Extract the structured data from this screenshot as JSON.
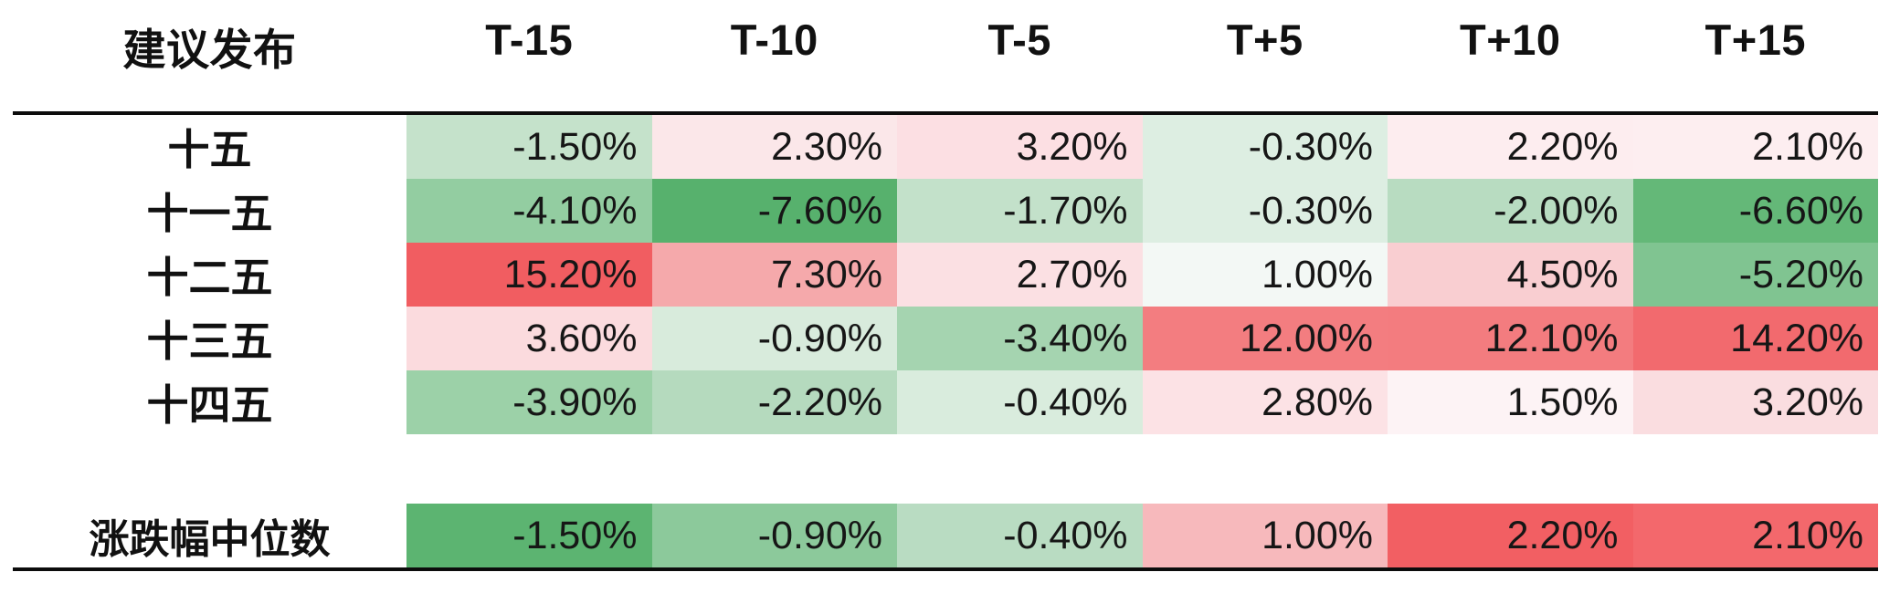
{
  "chart_data": {
    "type": "heatmap",
    "title": "",
    "value_format": "percent",
    "corner_label": "建议发布",
    "columns": [
      "T-15",
      "T-10",
      "T-5",
      "T+5",
      "T+10",
      "T+15"
    ],
    "rows": [
      {
        "label": "十五",
        "values": [
          "-1.50%",
          "2.30%",
          "3.20%",
          "-0.30%",
          "2.20%",
          "2.10%"
        ],
        "colors": [
          "#c5e2cb",
          "#fbe7e9",
          "#fcdfe3",
          "#ddeee2",
          "#fdedef",
          "#fdeef0"
        ]
      },
      {
        "label": "十一五",
        "values": [
          "-4.10%",
          "-7.60%",
          "-1.70%",
          "-0.30%",
          "-2.00%",
          "-6.60%"
        ],
        "colors": [
          "#93cda1",
          "#57b16d",
          "#c3e1ca",
          "#ddeee2",
          "#b8dcc1",
          "#64b878"
        ]
      },
      {
        "label": "十二五",
        "values": [
          "15.20%",
          "7.30%",
          "2.70%",
          "1.00%",
          "4.50%",
          "-5.20%"
        ],
        "colors": [
          "#f15d61",
          "#f5a9ab",
          "#fbe0e3",
          "#f3f8f5",
          "#f9ced1",
          "#80c491"
        ]
      },
      {
        "label": "十三五",
        "values": [
          "3.60%",
          "-0.90%",
          "-3.40%",
          "12.00%",
          "12.10%",
          "14.20%"
        ],
        "colors": [
          "#fbdbde",
          "#d8ebdc",
          "#a5d4b0",
          "#f37d80",
          "#f37c7f",
          "#f26a6e"
        ]
      },
      {
        "label": "十四五",
        "values": [
          "-3.90%",
          "-2.20%",
          "-0.40%",
          "2.80%",
          "1.50%",
          "3.20%"
        ],
        "colors": [
          "#9cd1a8",
          "#b5dabe",
          "#d9ecdd",
          "#fce2e5",
          "#fdf3f5",
          "#fadde0"
        ]
      }
    ],
    "summary_row": {
      "label": "涨跌幅中位数",
      "values": [
        "-1.50%",
        "-0.90%",
        "-0.40%",
        "1.00%",
        "2.20%",
        "2.10%"
      ],
      "colors": [
        "#5cb471",
        "#8cc99b",
        "#b9dcc2",
        "#f7b9bc",
        "#f25f63",
        "#f3686c"
      ]
    },
    "colors_meaning": {
      "positive": "#f15d61",
      "negative": "#57b16d",
      "neutral": "#f7f9f8"
    },
    "layout": {
      "grid": "off",
      "value_align": "right",
      "label_align": "center"
    }
  }
}
